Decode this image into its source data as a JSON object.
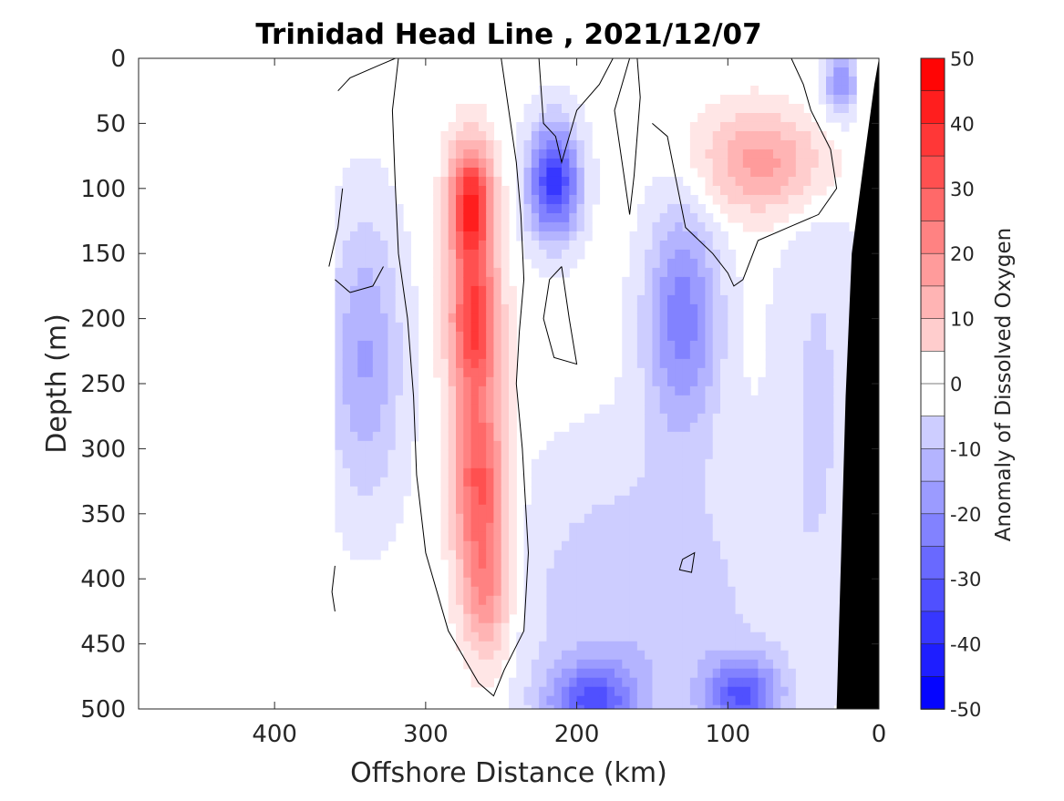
{
  "chart_data": {
    "type": "heatmap",
    "title": "Trinidad Head Line , 2021/12/07",
    "xlabel": "Offshore Distance (km)",
    "ylabel": "Depth (m)",
    "xlim": [
      490,
      0
    ],
    "ylim": [
      0,
      500
    ],
    "x_reversed": true,
    "y_reversed": true,
    "x_ticks": [
      "400",
      "300",
      "200",
      "100",
      "0"
    ],
    "x_tick_values": [
      400,
      300,
      200,
      100,
      0
    ],
    "y_ticks": [
      "0",
      "50",
      "100",
      "150",
      "200",
      "250",
      "300",
      "350",
      "400",
      "450",
      "500"
    ],
    "y_tick_values": [
      0,
      50,
      100,
      150,
      200,
      250,
      300,
      350,
      400,
      450,
      500
    ],
    "colorbar": {
      "label": "Anomaly of Dissolved Oxygen",
      "range": [
        -50,
        50
      ],
      "step": 5,
      "ticks": [
        "50",
        "40",
        "30",
        "20",
        "10",
        "0",
        "-10",
        "-20",
        "-30",
        "-40",
        "-50"
      ],
      "tick_values": [
        50,
        40,
        30,
        20,
        10,
        0,
        -10,
        -20,
        -30,
        -40,
        -50
      ],
      "colormap": "blue-white-red"
    },
    "features": [
      {
        "x": 270,
        "y": 110,
        "value": 42
      },
      {
        "x": 268,
        "y": 200,
        "value": 38
      },
      {
        "x": 265,
        "y": 320,
        "value": 32
      },
      {
        "x": 260,
        "y": 410,
        "value": 22
      },
      {
        "x": 215,
        "y": 95,
        "value": -40
      },
      {
        "x": 75,
        "y": 80,
        "value": 20
      },
      {
        "x": 130,
        "y": 200,
        "value": -25
      },
      {
        "x": 90,
        "y": 490,
        "value": -30
      },
      {
        "x": 190,
        "y": 495,
        "value": -28
      },
      {
        "x": 340,
        "y": 230,
        "value": -18
      },
      {
        "x": 25,
        "y": 20,
        "value": -22
      }
    ],
    "data_extent_km": 360,
    "bathymetry_color": "#000000",
    "zero_contour_color": "#000000"
  }
}
